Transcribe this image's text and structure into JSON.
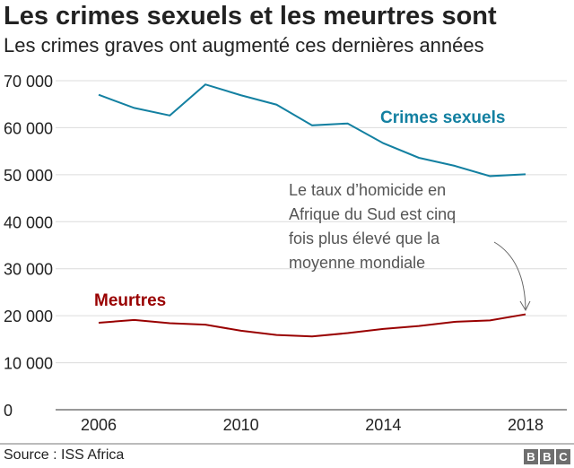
{
  "title": "Les crimes sexuels et les meurtres sont",
  "subtitle": "Les crimes graves ont augmenté ces dernières années",
  "source": "Source : ISS Africa",
  "logo": "BBC",
  "chart_data": {
    "type": "line",
    "x": [
      2006,
      2007,
      2008,
      2009,
      2010,
      2011,
      2012,
      2013,
      2014,
      2015,
      2016,
      2017,
      2018
    ],
    "series": [
      {
        "name": "Crimes sexuels",
        "color": "#1380a1",
        "values": [
          67000,
          64200,
          62600,
          69200,
          66900,
          64900,
          60500,
          60900,
          56700,
          53600,
          51900,
          49700,
          50100
        ]
      },
      {
        "name": "Meurtres",
        "color": "#990000",
        "values": [
          18500,
          19100,
          18400,
          18100,
          16800,
          15900,
          15600,
          16300,
          17200,
          17800,
          18700,
          19000,
          20300
        ]
      }
    ],
    "ylim": [
      0,
      70000
    ],
    "xlim": [
      2005.2,
      2019.2
    ],
    "yticks": [
      0,
      10000,
      20000,
      30000,
      40000,
      50000,
      60000,
      70000
    ],
    "ytick_labels": [
      "0",
      "10 000",
      "20 000",
      "30 000",
      "40 000",
      "50 000",
      "60 000",
      "70 000"
    ],
    "xticks": [
      2006,
      2010,
      2014,
      2018
    ],
    "xtick_labels": [
      "2006",
      "2010",
      "2014",
      "2018"
    ],
    "grid": true,
    "annotation": [
      "Le taux d’homicide en",
      "Afrique du Sud est cinq",
      "fois plus élevé que la",
      "moyenne mondiale"
    ]
  }
}
